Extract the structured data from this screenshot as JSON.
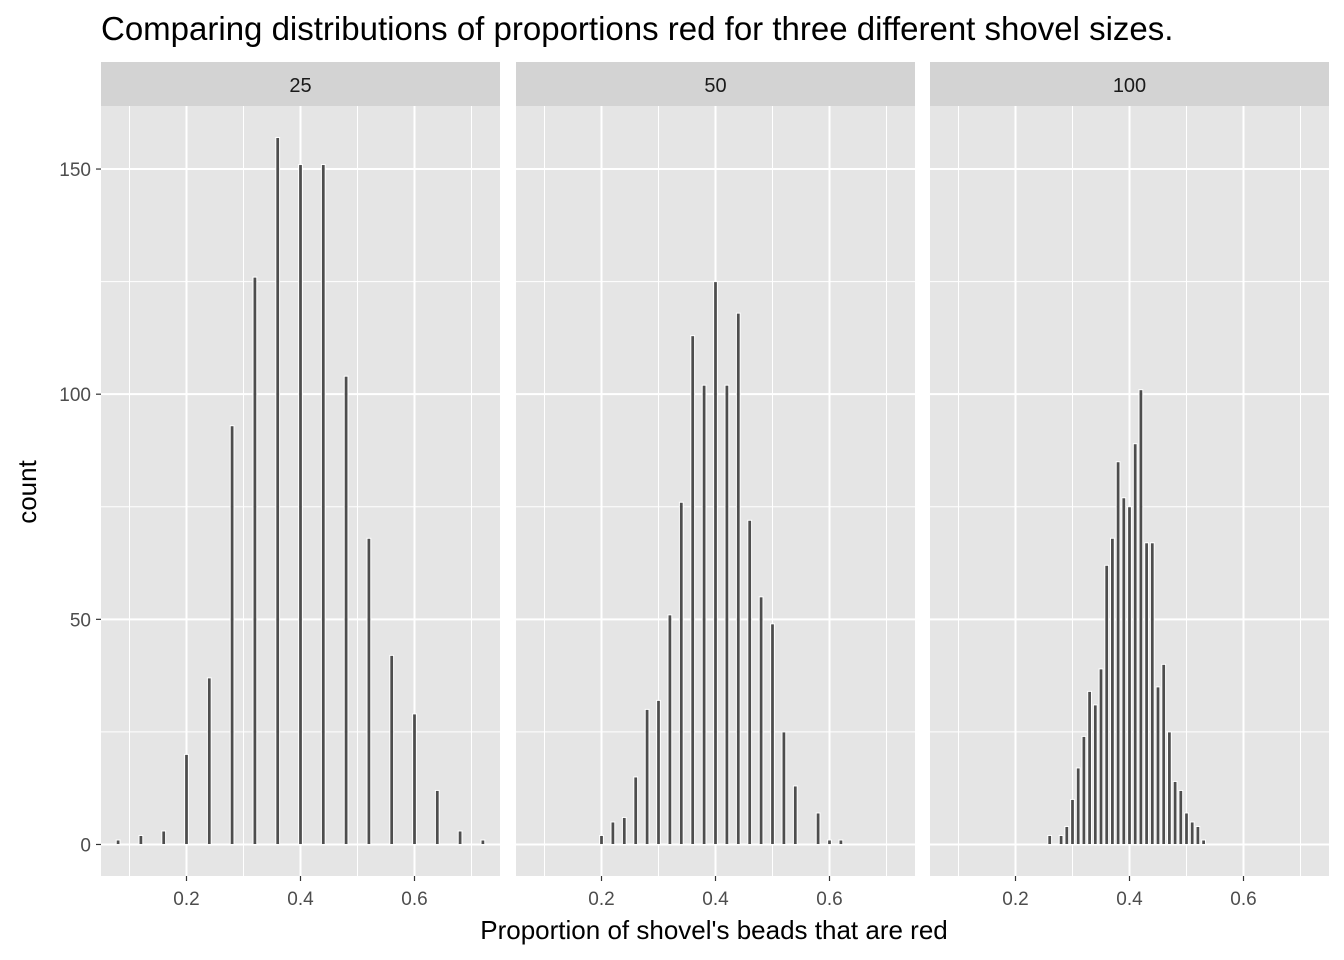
{
  "chart_data": {
    "type": "bar",
    "title": "Comparing distributions of proportions red for three different shovel sizes.",
    "xlabel": "Proportion of shovel's beads that are red",
    "ylabel": "count",
    "xlim": [
      0.05,
      0.75
    ],
    "ylim": [
      -7,
      164
    ],
    "x_ticks": [
      0.2,
      0.4,
      0.6
    ],
    "x_tick_labels": [
      "0.2",
      "0.4",
      "0.6"
    ],
    "y_ticks": [
      0,
      50,
      100,
      150
    ],
    "y_tick_labels": [
      "0",
      "50",
      "100",
      "150"
    ],
    "grid": true,
    "colors": {
      "panel_bg": "#e5e5e5",
      "strip_bg": "#d3d3d3",
      "bar_fill": "#4d4d4d",
      "bar_outline": "#ffffff",
      "grid": "#ffffff"
    },
    "facets": [
      {
        "label": "25",
        "bin_width": 0.0066,
        "bars": [
          {
            "x": 0.08,
            "count": 1
          },
          {
            "x": 0.12,
            "count": 2
          },
          {
            "x": 0.16,
            "count": 3
          },
          {
            "x": 0.2,
            "count": 20
          },
          {
            "x": 0.24,
            "count": 37
          },
          {
            "x": 0.28,
            "count": 93
          },
          {
            "x": 0.32,
            "count": 126
          },
          {
            "x": 0.36,
            "count": 157
          },
          {
            "x": 0.4,
            "count": 151
          },
          {
            "x": 0.44,
            "count": 151
          },
          {
            "x": 0.48,
            "count": 104
          },
          {
            "x": 0.52,
            "count": 68
          },
          {
            "x": 0.56,
            "count": 42
          },
          {
            "x": 0.6,
            "count": 29
          },
          {
            "x": 0.64,
            "count": 12
          },
          {
            "x": 0.68,
            "count": 3
          },
          {
            "x": 0.72,
            "count": 1
          }
        ]
      },
      {
        "label": "50",
        "bin_width": 0.0066,
        "bars": [
          {
            "x": 0.2,
            "count": 2
          },
          {
            "x": 0.22,
            "count": 5
          },
          {
            "x": 0.24,
            "count": 6
          },
          {
            "x": 0.26,
            "count": 15
          },
          {
            "x": 0.28,
            "count": 30
          },
          {
            "x": 0.3,
            "count": 32
          },
          {
            "x": 0.32,
            "count": 51
          },
          {
            "x": 0.34,
            "count": 76
          },
          {
            "x": 0.36,
            "count": 113
          },
          {
            "x": 0.38,
            "count": 102
          },
          {
            "x": 0.4,
            "count": 125
          },
          {
            "x": 0.42,
            "count": 102
          },
          {
            "x": 0.44,
            "count": 118
          },
          {
            "x": 0.46,
            "count": 72
          },
          {
            "x": 0.48,
            "count": 55
          },
          {
            "x": 0.5,
            "count": 49
          },
          {
            "x": 0.52,
            "count": 25
          },
          {
            "x": 0.54,
            "count": 13
          },
          {
            "x": 0.58,
            "count": 7
          },
          {
            "x": 0.6,
            "count": 1
          },
          {
            "x": 0.62,
            "count": 1
          }
        ]
      },
      {
        "label": "100",
        "bin_width": 0.0066,
        "bars": [
          {
            "x": 0.26,
            "count": 2
          },
          {
            "x": 0.28,
            "count": 2
          },
          {
            "x": 0.29,
            "count": 4
          },
          {
            "x": 0.3,
            "count": 10
          },
          {
            "x": 0.31,
            "count": 17
          },
          {
            "x": 0.32,
            "count": 24
          },
          {
            "x": 0.33,
            "count": 34
          },
          {
            "x": 0.34,
            "count": 31
          },
          {
            "x": 0.35,
            "count": 39
          },
          {
            "x": 0.36,
            "count": 62
          },
          {
            "x": 0.37,
            "count": 68
          },
          {
            "x": 0.38,
            "count": 85
          },
          {
            "x": 0.39,
            "count": 77
          },
          {
            "x": 0.4,
            "count": 75
          },
          {
            "x": 0.41,
            "count": 89
          },
          {
            "x": 0.42,
            "count": 101
          },
          {
            "x": 0.43,
            "count": 67
          },
          {
            "x": 0.44,
            "count": 67
          },
          {
            "x": 0.45,
            "count": 35
          },
          {
            "x": 0.46,
            "count": 40
          },
          {
            "x": 0.47,
            "count": 25
          },
          {
            "x": 0.48,
            "count": 14
          },
          {
            "x": 0.49,
            "count": 12
          },
          {
            "x": 0.5,
            "count": 7
          },
          {
            "x": 0.51,
            "count": 5
          },
          {
            "x": 0.52,
            "count": 4
          },
          {
            "x": 0.53,
            "count": 1
          }
        ]
      }
    ]
  }
}
